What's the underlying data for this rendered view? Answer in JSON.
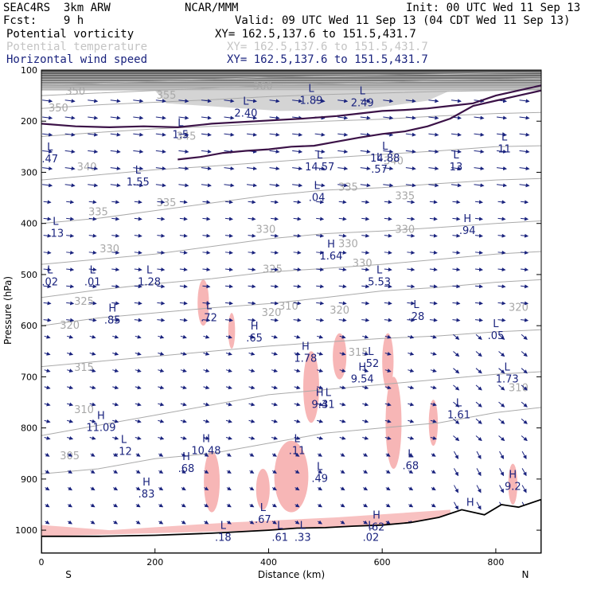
{
  "header": {
    "line1_left": "SEAC4RS  3km ARW",
    "line1_center": "NCAR/MMM",
    "line1_right": "Init: 00 UTC Wed 11 Sep 13",
    "line2_left": "Fcst:    9 h",
    "line2_right": "Valid: 09 UTC Wed 11 Sep 13 (04 CDT Wed 11 Sep 13)",
    "fields": [
      {
        "name": "Potential vorticity",
        "xy": "XY= 162.5,137.6 to 151.5,431.7"
      },
      {
        "name": "Potential temperature",
        "xy": "XY= 162.5,137.6 to 151.5,431.7"
      },
      {
        "name": "Horizontal wind speed",
        "xy": "XY= 162.5,137.6 to 151.5,431.7"
      }
    ]
  },
  "colors": {
    "pv_contour": "#3b1247",
    "theta_contour": "#aaaaaa",
    "wind_vector": "#1a237e",
    "pv_fill": "#f7b6b6",
    "high_pv_fill": "#9a9a9a",
    "terrain": "#000000"
  },
  "chart_data": {
    "type": "cross-section",
    "xlabel": "Distance (km)",
    "ylabel": "Pressure (hPa)",
    "x_ticks": [
      0,
      200,
      400,
      600,
      800
    ],
    "y_ticks": [
      100,
      200,
      300,
      400,
      500,
      600,
      700,
      800,
      900,
      1000
    ],
    "xlim": [
      0,
      880
    ],
    "ylim": [
      100,
      1045
    ],
    "end_labels": {
      "left": "S",
      "right": "N"
    },
    "theta_contours": [
      {
        "value": 305,
        "points": [
          [
            0,
            890
          ],
          [
            100,
            880
          ],
          [
            200,
            860
          ],
          [
            300,
            850
          ],
          [
            400,
            830
          ],
          [
            500,
            810
          ],
          [
            600,
            800
          ],
          [
            700,
            790
          ],
          [
            800,
            770
          ],
          [
            880,
            760
          ]
        ],
        "labels": [
          [
            50,
            855
          ]
        ]
      },
      {
        "value": 310,
        "points": [
          [
            0,
            815
          ],
          [
            100,
            795
          ],
          [
            200,
            775
          ],
          [
            300,
            755
          ],
          [
            400,
            735
          ],
          [
            500,
            725
          ],
          [
            600,
            715
          ],
          [
            700,
            705
          ],
          [
            800,
            695
          ],
          [
            880,
            690
          ]
        ],
        "labels": [
          [
            75,
            765
          ],
          [
            435,
            562
          ],
          [
            840,
            722
          ]
        ]
      },
      {
        "value": 315,
        "points": [
          [
            0,
            680
          ],
          [
            100,
            670
          ],
          [
            200,
            660
          ],
          [
            300,
            650
          ],
          [
            400,
            640
          ],
          [
            500,
            632
          ],
          [
            600,
            625
          ],
          [
            700,
            620
          ],
          [
            800,
            612
          ],
          [
            880,
            608
          ]
        ],
        "labels": [
          [
            75,
            682
          ],
          [
            558,
            653
          ]
        ]
      },
      {
        "value": 320,
        "points": [
          [
            0,
            600
          ],
          [
            100,
            585
          ],
          [
            200,
            575
          ],
          [
            300,
            565
          ],
          [
            400,
            557
          ],
          [
            500,
            545
          ],
          [
            600,
            532
          ],
          [
            700,
            525
          ],
          [
            800,
            515
          ],
          [
            880,
            510
          ]
        ],
        "labels": [
          [
            50,
            600
          ],
          [
            405,
            575
          ],
          [
            525,
            570
          ],
          [
            840,
            565
          ]
        ]
      },
      {
        "value": 325,
        "points": [
          [
            0,
            545
          ],
          [
            100,
            530
          ],
          [
            200,
            518
          ],
          [
            300,
            508
          ],
          [
            400,
            495
          ],
          [
            500,
            488
          ],
          [
            600,
            480
          ],
          [
            700,
            470
          ],
          [
            800,
            460
          ],
          [
            880,
            455
          ]
        ],
        "labels": [
          [
            75,
            553
          ],
          [
            407,
            490
          ]
        ]
      },
      {
        "value": 330,
        "points": [
          [
            0,
            480
          ],
          [
            100,
            470
          ],
          [
            200,
            460
          ],
          [
            300,
            445
          ],
          [
            400,
            430
          ],
          [
            500,
            420
          ],
          [
            600,
            415
          ],
          [
            700,
            408
          ],
          [
            800,
            400
          ],
          [
            880,
            395
          ]
        ],
        "labels": [
          [
            120,
            450
          ],
          [
            395,
            412
          ],
          [
            565,
            478
          ],
          [
            540,
            440
          ],
          [
            640,
            412
          ]
        ]
      },
      {
        "value": 335,
        "points": [
          [
            0,
            400
          ],
          [
            100,
            390
          ],
          [
            200,
            375
          ],
          [
            300,
            360
          ],
          [
            400,
            345
          ],
          [
            500,
            335
          ],
          [
            600,
            330
          ],
          [
            700,
            322
          ],
          [
            800,
            315
          ],
          [
            880,
            312
          ]
        ],
        "labels": [
          [
            100,
            378
          ],
          [
            220,
            360
          ],
          [
            540,
            330
          ],
          [
            640,
            347
          ]
        ]
      },
      {
        "value": 340,
        "points": [
          [
            0,
            315
          ],
          [
            100,
            305
          ],
          [
            200,
            295
          ],
          [
            300,
            288
          ],
          [
            400,
            280
          ],
          [
            500,
            272
          ],
          [
            600,
            265
          ],
          [
            700,
            258
          ],
          [
            800,
            250
          ],
          [
            880,
            248
          ]
        ],
        "labels": [
          [
            80,
            290
          ],
          [
            620,
            278
          ]
        ]
      },
      {
        "value": 345,
        "points": [
          [
            0,
            230
          ],
          [
            100,
            222
          ],
          [
            200,
            215
          ],
          [
            300,
            210
          ],
          [
            400,
            205
          ],
          [
            500,
            200
          ],
          [
            600,
            196
          ],
          [
            700,
            190
          ],
          [
            800,
            185
          ],
          [
            880,
            183
          ]
        ],
        "labels": [
          [
            255,
            230
          ]
        ]
      },
      {
        "value": 350,
        "points": [
          [
            0,
            175
          ],
          [
            100,
            168
          ],
          [
            200,
            163
          ],
          [
            300,
            158
          ],
          [
            400,
            152
          ],
          [
            500,
            148
          ],
          [
            600,
            145
          ],
          [
            700,
            142
          ],
          [
            800,
            140
          ],
          [
            880,
            138
          ]
        ],
        "labels": [
          [
            30,
            175
          ],
          [
            60,
            142
          ]
        ]
      },
      {
        "value": 355,
        "points": [
          [
            0,
            150
          ],
          [
            100,
            145
          ],
          [
            200,
            140
          ],
          [
            300,
            135
          ],
          [
            400,
            130
          ],
          [
            500,
            127
          ],
          [
            600,
            124
          ],
          [
            700,
            120
          ],
          [
            800,
            118
          ],
          [
            880,
            116
          ]
        ],
        "labels": [
          [
            220,
            150
          ]
        ]
      },
      {
        "value": 360,
        "points": [
          [
            0,
            130
          ],
          [
            100,
            126
          ],
          [
            200,
            122
          ],
          [
            300,
            118
          ],
          [
            400,
            114
          ],
          [
            500,
            112
          ],
          [
            600,
            110
          ],
          [
            700,
            108
          ],
          [
            800,
            106
          ],
          [
            880,
            105
          ]
        ],
        "labels": [
          [
            390,
            132
          ]
        ]
      }
    ],
    "pv_contour_2pvu": [
      [
        0,
        205
      ],
      [
        60,
        210
      ],
      [
        120,
        212
      ],
      [
        180,
        210
      ],
      [
        240,
        212
      ],
      [
        300,
        205
      ],
      [
        380,
        200
      ],
      [
        460,
        195
      ],
      [
        520,
        190
      ],
      [
        560,
        185
      ],
      [
        600,
        180
      ],
      [
        640,
        178
      ],
      [
        680,
        175
      ],
      [
        720,
        170
      ],
      [
        760,
        165
      ],
      [
        800,
        150
      ],
      [
        840,
        140
      ],
      [
        880,
        130
      ]
    ],
    "pv_lower_fold": [
      [
        240,
        275
      ],
      [
        280,
        270
      ],
      [
        320,
        262
      ],
      [
        360,
        258
      ],
      [
        400,
        255
      ],
      [
        440,
        250
      ],
      [
        480,
        248
      ],
      [
        520,
        240
      ],
      [
        560,
        232
      ],
      [
        600,
        225
      ],
      [
        640,
        220
      ],
      [
        680,
        210
      ],
      [
        720,
        195
      ],
      [
        760,
        170
      ],
      [
        800,
        160
      ],
      [
        840,
        150
      ],
      [
        880,
        140
      ]
    ],
    "terrain": [
      [
        0,
        1012
      ],
      [
        100,
        1012
      ],
      [
        200,
        1010
      ],
      [
        300,
        1006
      ],
      [
        400,
        1000
      ],
      [
        450,
        996
      ],
      [
        500,
        995
      ],
      [
        550,
        992
      ],
      [
        600,
        990
      ],
      [
        650,
        985
      ],
      [
        700,
        975
      ],
      [
        740,
        960
      ],
      [
        780,
        970
      ],
      [
        810,
        950
      ],
      [
        840,
        955
      ],
      [
        880,
        940
      ]
    ],
    "pv_fill_blobs": [
      {
        "cx": 285,
        "cy": 555,
        "rx": 10,
        "ry": 45
      },
      {
        "cx": 335,
        "cy": 610,
        "rx": 6,
        "ry": 35
      },
      {
        "cx": 475,
        "cy": 720,
        "rx": 14,
        "ry": 70
      },
      {
        "cx": 525,
        "cy": 660,
        "rx": 12,
        "ry": 45
      },
      {
        "cx": 610,
        "cy": 670,
        "rx": 10,
        "ry": 55
      },
      {
        "cx": 620,
        "cy": 790,
        "rx": 14,
        "ry": 90
      },
      {
        "cx": 690,
        "cy": 790,
        "rx": 8,
        "ry": 45
      },
      {
        "cx": 300,
        "cy": 905,
        "rx": 14,
        "ry": 60
      },
      {
        "cx": 440,
        "cy": 895,
        "rx": 30,
        "ry": 70
      },
      {
        "cx": 390,
        "cy": 920,
        "rx": 12,
        "ry": 40
      },
      {
        "cx": 830,
        "cy": 910,
        "rx": 8,
        "ry": 40
      }
    ],
    "high_pv_region": {
      "top": 100,
      "bottom": 140,
      "mid_extension": [
        [
          220,
          165
        ],
        [
          420,
          180
        ],
        [
          560,
          178
        ],
        [
          680,
          160
        ]
      ]
    },
    "pv_labels": [
      {
        "type": "L",
        "value": "2.40",
        "x": 360,
        "y": 180
      },
      {
        "type": "L",
        "value": "1.89",
        "x": 475,
        "y": 155
      },
      {
        "type": "L",
        "value": "2.49",
        "x": 565,
        "y": 160
      },
      {
        "type": "L",
        "value": "1.5",
        "x": 245,
        "y": 222
      },
      {
        "type": "L",
        "value": "14.57",
        "x": 490,
        "y": 285
      },
      {
        "type": "L",
        "value": "14.88",
        "x": 605,
        "y": 268
      },
      {
        "type": "L",
        "value": ".57",
        "x": 595,
        "y": 290
      },
      {
        "type": "L",
        "value": ".04",
        "x": 485,
        "y": 345
      },
      {
        "type": "L",
        "value": "13",
        "x": 730,
        "y": 285
      },
      {
        "type": "L",
        "value": "11",
        "x": 815,
        "y": 250
      },
      {
        "type": "L",
        "value": ".47",
        "x": 15,
        "y": 270
      },
      {
        "type": "L",
        "value": "1.55",
        "x": 170,
        "y": 315
      },
      {
        "type": "L",
        "value": ".13",
        "x": 25,
        "y": 415
      },
      {
        "type": "L",
        "value": ".02",
        "x": 15,
        "y": 510
      },
      {
        "type": "L",
        "value": ".01",
        "x": 90,
        "y": 510
      },
      {
        "type": "L",
        "value": "1.28",
        "x": 190,
        "y": 510
      },
      {
        "type": "H",
        "value": "1.64",
        "x": 510,
        "y": 460
      },
      {
        "type": "H",
        "value": ".94",
        "x": 750,
        "y": 410
      },
      {
        "type": "L",
        "value": "5.53",
        "x": 595,
        "y": 510
      },
      {
        "type": "H",
        "value": ".85",
        "x": 125,
        "y": 585
      },
      {
        "type": "L",
        "value": ".72",
        "x": 295,
        "y": 580
      },
      {
        "type": "L",
        "value": ".28",
        "x": 660,
        "y": 578
      },
      {
        "type": "H",
        "value": ".65",
        "x": 375,
        "y": 620
      },
      {
        "type": "L",
        "value": ".05",
        "x": 800,
        "y": 615
      },
      {
        "type": "H",
        "value": "1.78",
        "x": 465,
        "y": 660
      },
      {
        "type": "L",
        "value": ".52",
        "x": 580,
        "y": 670
      },
      {
        "type": "H",
        "value": "9.54",
        "x": 565,
        "y": 700
      },
      {
        "type": "L",
        "value": "1.73",
        "x": 820,
        "y": 700
      },
      {
        "type": "H",
        "value": "9.4",
        "x": 490,
        "y": 750
      },
      {
        "type": "L",
        "value": "31",
        "x": 505,
        "y": 750
      },
      {
        "type": "L",
        "value": "1.61",
        "x": 735,
        "y": 770
      },
      {
        "type": "H",
        "value": "11.09",
        "x": 105,
        "y": 795
      },
      {
        "type": "L",
        "value": ".12",
        "x": 145,
        "y": 842
      },
      {
        "type": "H",
        "value": "10.48",
        "x": 290,
        "y": 840
      },
      {
        "type": "L",
        "value": ".11",
        "x": 450,
        "y": 840
      },
      {
        "type": "H",
        "value": ".68",
        "x": 255,
        "y": 875
      },
      {
        "type": "L",
        "value": ".68",
        "x": 650,
        "y": 870
      },
      {
        "type": "L",
        "value": ".49",
        "x": 490,
        "y": 895
      },
      {
        "type": "H",
        "value": ".83",
        "x": 185,
        "y": 925
      },
      {
        "type": "H",
        "value": "9.2",
        "x": 830,
        "y": 910
      },
      {
        "type": "L",
        "value": ".67",
        "x": 390,
        "y": 975
      },
      {
        "type": "L",
        "value": ".18",
        "x": 320,
        "y": 1010
      },
      {
        "type": "L",
        "value": ".61",
        "x": 420,
        "y": 1010
      },
      {
        "type": "L",
        "value": ".33",
        "x": 460,
        "y": 1010
      },
      {
        "type": "L",
        "value": ".02",
        "x": 580,
        "y": 1010
      },
      {
        "type": "H",
        "value": ".62",
        "x": 590,
        "y": 990
      },
      {
        "type": "H",
        "value": "",
        "x": 755,
        "y": 965
      }
    ],
    "wind_vectors": {
      "x_spacing_km": 40,
      "p_spacing_hpa": 33,
      "note": ""
    }
  }
}
